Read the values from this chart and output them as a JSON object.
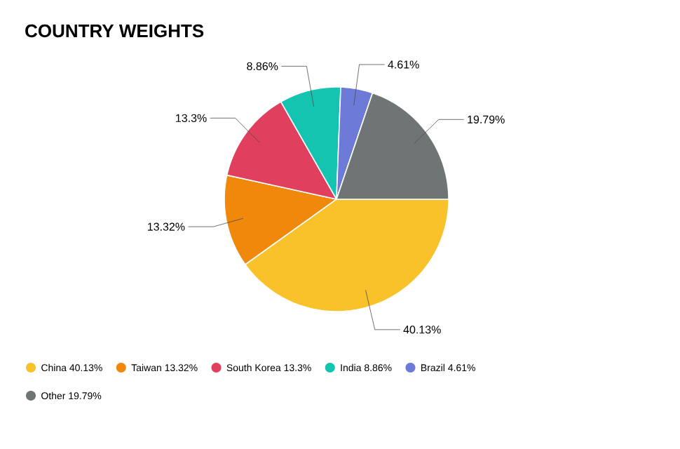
{
  "chart_data": {
    "type": "pie",
    "title": "COUNTRY WEIGHTS",
    "categories": [
      "China",
      "Taiwan",
      "South Korea",
      "India",
      "Brazil",
      "Other"
    ],
    "values": [
      40.13,
      13.32,
      13.3,
      8.86,
      4.61,
      19.79
    ],
    "value_labels": [
      "40.13%",
      "13.32%",
      "13.3%",
      "8.86%",
      "4.61%",
      "19.79%"
    ],
    "colors": [
      "#f9c12a",
      "#f0880c",
      "#e0405e",
      "#14c4b0",
      "#6e7ad8",
      "#6f7475"
    ],
    "data_labels": true,
    "legend": "bottom"
  }
}
